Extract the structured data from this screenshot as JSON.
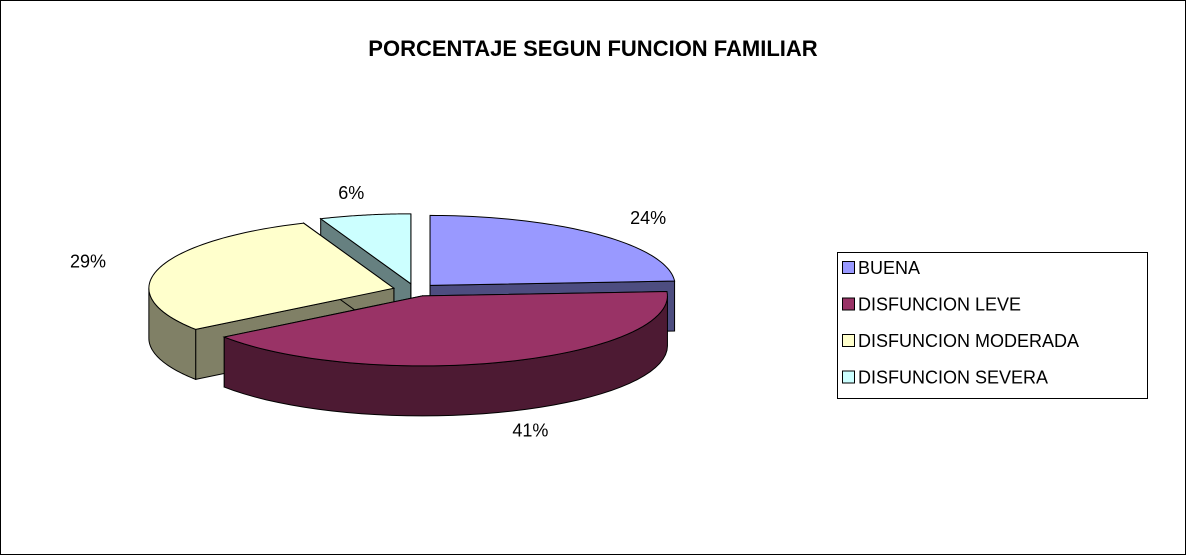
{
  "chart_data": {
    "type": "pie3d",
    "title": "PORCENTAJE SEGUN FUNCION FAMILIAR",
    "categories": [
      "BUENA",
      "DISFUNCION LEVE",
      "DISFUNCION MODERADA",
      "DISFUNCION SEVERA"
    ],
    "values": [
      24,
      41,
      29,
      6
    ],
    "value_labels": [
      "24%",
      "41%",
      "29%",
      "6%"
    ],
    "colors": [
      "#9999ff",
      "#993366",
      "#ffffcc",
      "#ccffff"
    ],
    "legend": "right"
  }
}
